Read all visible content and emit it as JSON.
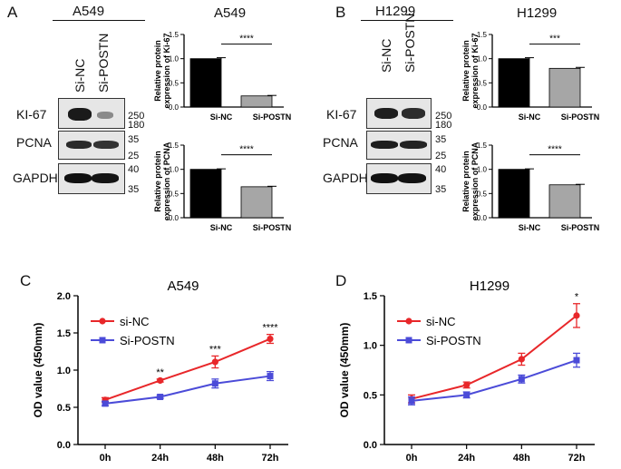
{
  "panels": {
    "A": {
      "letter": "A",
      "cell_line": "A549",
      "lanes": [
        "Si-NC",
        "Si-POSTN"
      ],
      "blots": [
        {
          "protein": "KI-67",
          "markers": [
            "250",
            "180"
          ]
        },
        {
          "protein": "PCNA",
          "markers": [
            "35",
            "25"
          ]
        },
        {
          "protein": "GAPDH",
          "markers": [
            "40",
            "35"
          ]
        }
      ]
    },
    "B": {
      "letter": "B",
      "cell_line": "H1299",
      "lanes": [
        "Si-NC",
        "Si-POSTN"
      ],
      "blots": [
        {
          "protein": "KI-67",
          "markers": [
            "250",
            "180"
          ]
        },
        {
          "protein": "PCNA",
          "markers": [
            "35",
            "25"
          ]
        },
        {
          "protein": "GAPDH",
          "markers": [
            "40",
            "35"
          ]
        }
      ]
    },
    "C": {
      "letter": "C"
    },
    "D": {
      "letter": "D"
    }
  },
  "colors": {
    "black_bar": "#000000",
    "gray_bar": "#a6a6a6",
    "si_nc": "#e8272a",
    "si_postn": "#4b4bd8"
  },
  "chart_data": [
    {
      "id": "A-ki67",
      "type": "bar",
      "title": "A549",
      "categories": [
        "Si-NC",
        "Si-POSTN"
      ],
      "values": [
        1.0,
        0.23
      ],
      "errors": [
        0.02,
        0.01
      ],
      "ylabel": "Relative protein expression of Ki-67",
      "ylim": [
        0,
        1.5
      ],
      "yticks": [
        "0.0",
        "0.5",
        "1.0",
        "1.5"
      ],
      "significance": "****"
    },
    {
      "id": "A-pcna",
      "type": "bar",
      "title": "",
      "categories": [
        "Si-NC",
        "Si-POSTN"
      ],
      "values": [
        1.0,
        0.64
      ],
      "errors": [
        0.01,
        0.01
      ],
      "ylabel": "Relative protein expression of PCNA",
      "ylim": [
        0,
        1.5
      ],
      "yticks": [
        "0.0",
        "0.5",
        "1.0",
        "1.5"
      ],
      "significance": "****"
    },
    {
      "id": "B-ki67",
      "type": "bar",
      "title": "H1299",
      "categories": [
        "Si-NC",
        "Si-POSTN"
      ],
      "values": [
        1.0,
        0.8
      ],
      "errors": [
        0.02,
        0.02
      ],
      "ylabel": "Relative protein expression of Ki-67",
      "ylim": [
        0,
        1.5
      ],
      "yticks": [
        "0.0",
        "0.5",
        "1.0",
        "1.5"
      ],
      "significance": "***"
    },
    {
      "id": "B-pcna",
      "type": "bar",
      "title": "",
      "categories": [
        "Si-NC",
        "Si-POSTN"
      ],
      "values": [
        1.0,
        0.68
      ],
      "errors": [
        0.01,
        0.01
      ],
      "ylabel": "Relative protein expression of PCNA",
      "ylim": [
        0,
        1.5
      ],
      "yticks": [
        "0.0",
        "0.5",
        "1.0",
        "1.5"
      ],
      "significance": "****"
    },
    {
      "id": "C",
      "type": "line",
      "title": "A549",
      "categories": [
        "0h",
        "24h",
        "48h",
        "72h"
      ],
      "series": [
        {
          "name": "si-NC",
          "values": [
            0.6,
            0.86,
            1.11,
            1.42
          ],
          "errors": [
            0.03,
            0.02,
            0.08,
            0.06
          ]
        },
        {
          "name": "Si-POSTN",
          "values": [
            0.55,
            0.64,
            0.82,
            0.92
          ],
          "errors": [
            0.03,
            0.02,
            0.06,
            0.06
          ]
        }
      ],
      "annotations": [
        "",
        "**",
        "***",
        "****"
      ],
      "ylabel": "OD value (450mm)",
      "ylim": [
        0,
        2.0
      ],
      "yticks": [
        "0.0",
        "0.5",
        "1.0",
        "1.5",
        "2.0"
      ],
      "legend": "top-left"
    },
    {
      "id": "D",
      "type": "line",
      "title": "H1299",
      "categories": [
        "0h",
        "24h",
        "48h",
        "72h"
      ],
      "series": [
        {
          "name": "si-NC",
          "values": [
            0.46,
            0.6,
            0.86,
            1.3
          ],
          "errors": [
            0.04,
            0.03,
            0.06,
            0.12
          ]
        },
        {
          "name": "Si-POSTN",
          "values": [
            0.44,
            0.5,
            0.66,
            0.85
          ],
          "errors": [
            0.04,
            0.03,
            0.04,
            0.07
          ]
        }
      ],
      "annotations": [
        "",
        "",
        "",
        "*"
      ],
      "ylabel": "OD value (450mm)",
      "ylim": [
        0,
        1.5
      ],
      "yticks": [
        "0.0",
        "0.5",
        "1.0",
        "1.5"
      ],
      "legend": "top-left"
    }
  ]
}
